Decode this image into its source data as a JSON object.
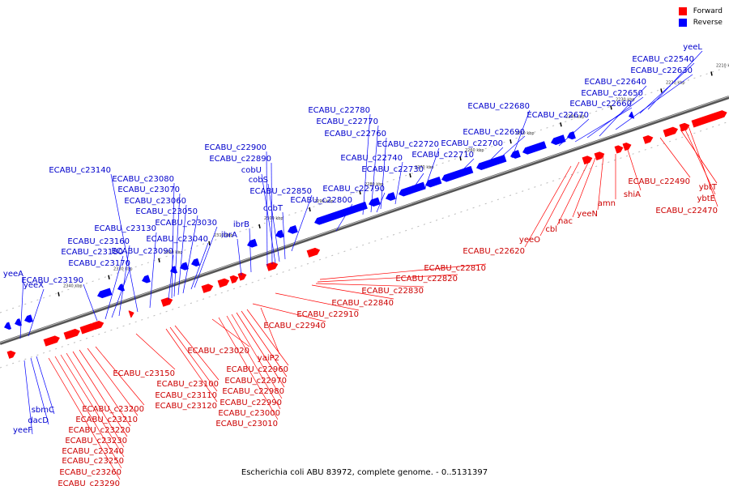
{
  "caption": "Escherichia coli ABU 83972, complete genome. - 0..5131397",
  "legend": {
    "forward_label": "Forward",
    "forward_color": "#ff0000",
    "reverse_label": "Reverse",
    "reverse_color": "#0000ff"
  },
  "colors": {
    "forward": "#ff0000",
    "forward_text": "#cc0000",
    "reverse": "#0000ff",
    "reverse_text": "#0000cc",
    "backbone": "#888888"
  },
  "ticks": [
    "2210 kbp",
    "2220 kbp",
    "2230 kbp",
    "2240 kbp",
    "2250 kbp",
    "2260 kbp",
    "2270 kbp",
    "2280 kbp",
    "2290 kbp",
    "2300 kbp",
    "2310 kbp",
    "2320 kbp",
    "2330 kbp",
    "2340 kbp"
  ],
  "reverse_labels": [
    "yeeL",
    "ECABU_c22540",
    "ECABU_c22630",
    "ECABU_c22640",
    "ECABU_c22650",
    "ECABU_c22660",
    "ECABU_c22670",
    "ECABU_c22680",
    "ECABU_c22690",
    "ECABU_c22700",
    "ECABU_c22710",
    "ECABU_c22720",
    "ECABU_c22730",
    "ECABU_c22740",
    "ECABU_c22760",
    "ECABU_c22770",
    "ECABU_c22780",
    "ECABU_c22790",
    "ECABU_c22800",
    "ECABU_c22850",
    "cobT",
    "cobS",
    "cobU",
    "ECABU_c22890",
    "ECABU_c22900",
    "ibrB",
    "ibrA",
    "ECABU_c23030",
    "ECABU_c23040",
    "ECABU_c23050",
    "ECABU_c23060",
    "ECABU_c23070",
    "ECABU_c23080",
    "ECABU_c23090",
    "ECABU_c23130",
    "ECABU_c23140",
    "ECABU_c23160",
    "ECABU_c23170",
    "ECABU_c23180",
    "ECABU_c23190",
    "yeeA",
    "yeeX",
    "sbmC",
    "dacD",
    "yeeF"
  ],
  "forward_labels": [
    "ybtT",
    "ybtE",
    "ECABU_c22470",
    "ECABU_c22490",
    "shiA",
    "amn",
    "yeeN",
    "nac",
    "cbl",
    "yeeO",
    "ECABU_c22620",
    "ECABU_c22810",
    "ECABU_c22820",
    "ECABU_c22830",
    "ECABU_c22840",
    "ECABU_c22910",
    "ECABU_c22940",
    "yaiP2",
    "ECABU_c22960",
    "ECABU_c22970",
    "ECABU_c22980",
    "ECABU_c22990",
    "ECABU_c23000",
    "ECABU_c23010",
    "ECABU_c23020",
    "ECABU_c23100",
    "ECABU_c23110",
    "ECABU_c23120",
    "ECABU_c23150",
    "ECABU_c23200",
    "ECABU_c23210",
    "ECABU_c23220",
    "ECABU_c23230",
    "ECABU_c23240",
    "ECABU_c23250",
    "ECABU_c23260",
    "ECABU_c23290"
  ]
}
